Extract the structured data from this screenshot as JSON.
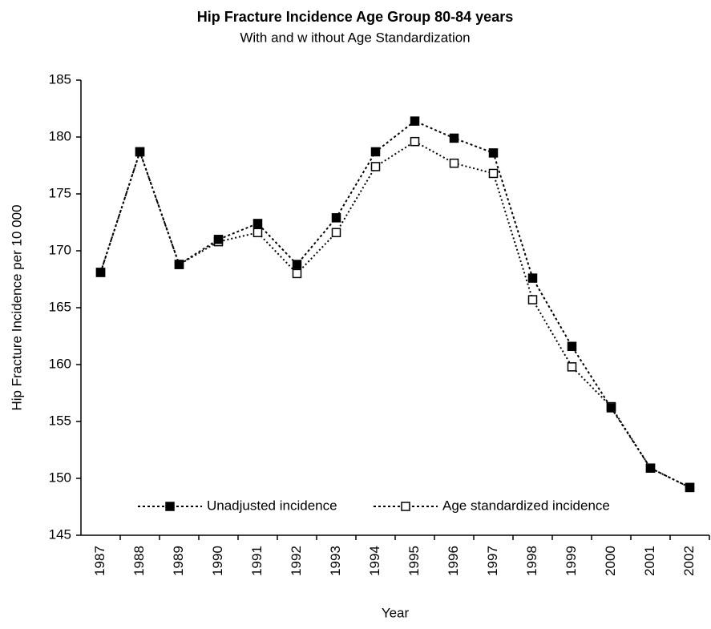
{
  "chart_data": {
    "type": "line",
    "title": "Hip Fracture Incidence Age Group 80-84 years",
    "subtitle": "With and w ithout Age Standardization",
    "x_label": "Year",
    "y_label": "Hip Fracture Incidence per 10 000",
    "categories": [
      "1987",
      "1988",
      "1989",
      "1990",
      "1991",
      "1992",
      "1993",
      "1994",
      "1995",
      "1996",
      "1997",
      "1998",
      "1999",
      "2000",
      "2001",
      "2002"
    ],
    "series": [
      {
        "name": "Unadjusted incidence",
        "color": "#000000",
        "marker": "filled-square",
        "values": [
          168.1,
          178.7,
          168.8,
          171.0,
          172.4,
          168.8,
          172.9,
          178.7,
          181.4,
          179.9,
          178.6,
          167.6,
          161.6,
          156.2,
          150.9,
          149.2
        ]
      },
      {
        "name": "Age standardized incidence",
        "color": "#000000",
        "marker": "hollow-square",
        "values": [
          168.1,
          178.7,
          168.8,
          170.8,
          171.6,
          168.0,
          171.6,
          177.4,
          179.6,
          177.7,
          176.8,
          165.7,
          159.8,
          156.3,
          150.9,
          149.2
        ]
      }
    ],
    "ylim": [
      145,
      185
    ],
    "yticks": [
      145,
      150,
      155,
      160,
      165,
      170,
      175,
      180,
      185
    ],
    "grid": false,
    "legend": "bottom"
  }
}
